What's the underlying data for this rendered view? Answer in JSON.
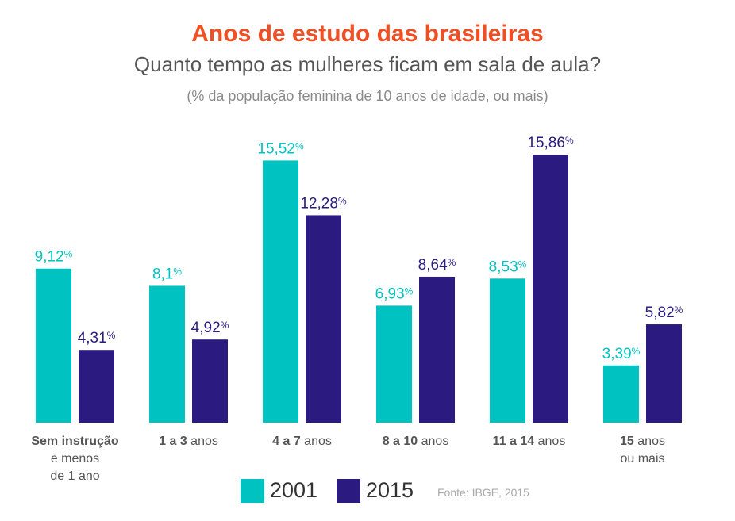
{
  "chart_data": {
    "type": "bar",
    "title": "Anos de estudo das brasileiras",
    "subtitle": "Quanto tempo as mulheres ficam em sala de aula?",
    "note": "(% da população feminina de 10 anos de idade, ou mais)",
    "categories": [
      {
        "bold": "Sem instrução",
        "rest": "e menos de 1 ano"
      },
      {
        "bold": "1 a 3",
        "rest": "anos"
      },
      {
        "bold": "4 a 7",
        "rest": "anos"
      },
      {
        "bold": "8 a 10",
        "rest": "anos"
      },
      {
        "bold": "11 a 14",
        "rest": "anos"
      },
      {
        "bold": "15",
        "rest": "anos ou mais"
      }
    ],
    "series": [
      {
        "name": "2001",
        "color": "#00c2c0",
        "values": [
          9.12,
          8.1,
          15.52,
          6.93,
          8.53,
          3.39
        ],
        "labels": [
          "9,12",
          "8,1",
          "15,52",
          "6,93",
          "8,53",
          "3,39"
        ]
      },
      {
        "name": "2015",
        "color": "#2b1b80",
        "values": [
          4.31,
          4.92,
          12.28,
          8.64,
          15.86,
          5.82
        ],
        "labels": [
          "4,31",
          "4,92",
          "12,28",
          "8,64",
          "15,86",
          "5,82"
        ]
      }
    ],
    "unit": "%",
    "ylim": [
      0,
      16
    ],
    "legend": "bottom",
    "source": "Fonte: IBGE, 2015"
  }
}
